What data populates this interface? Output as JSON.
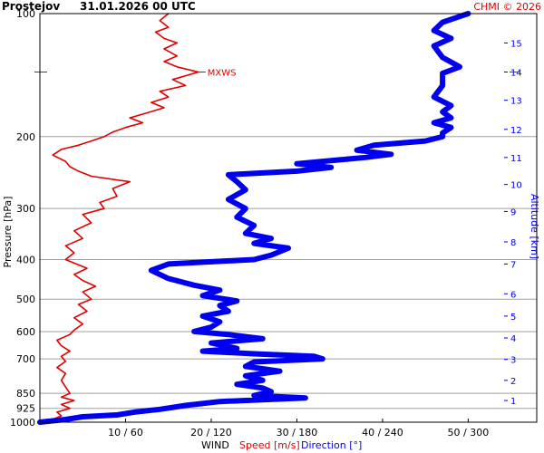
{
  "header": {
    "station": "Prostejov",
    "datetime": "31.01.2026 00 UTC",
    "credit": "CHMI © 2026"
  },
  "colors": {
    "speed": "#e00000",
    "direction": "#0000ee",
    "grid": "#a0a0a0",
    "frame": "#000000",
    "background": "#ffffff"
  },
  "chart_data": {
    "type": "line",
    "title": "Prostejov   31.01.2026 00 UTC",
    "y_axis": {
      "label": "Pressure [hPa]",
      "scale": "log",
      "range": [
        1000,
        100
      ],
      "ticks": [
        100,
        200,
        300,
        400,
        500,
        600,
        700,
        850,
        925,
        1000
      ]
    },
    "y2_axis": {
      "label": "Altitude [km]",
      "ticks": [
        {
          "label": "1",
          "hPa": 885
        },
        {
          "label": "2",
          "hPa": 790
        },
        {
          "label": "3",
          "hPa": 702
        },
        {
          "label": "4",
          "hPa": 622
        },
        {
          "label": "5",
          "hPa": 550
        },
        {
          "label": "6",
          "hPa": 485
        },
        {
          "label": "7",
          "hPa": 410
        },
        {
          "label": "8",
          "hPa": 362
        },
        {
          "label": "9",
          "hPa": 305
        },
        {
          "label": "10",
          "hPa": 262
        },
        {
          "label": "11",
          "hPa": 225
        },
        {
          "label": "12",
          "hPa": 192
        },
        {
          "label": "13",
          "hPa": 163
        },
        {
          "label": "14",
          "hPa": 139
        },
        {
          "label": "15",
          "hPa": 118
        }
      ]
    },
    "x_axis": {
      "speed_range": [
        0,
        58
      ],
      "direction_range": [
        0,
        348
      ],
      "ticks": [
        {
          "speed": 10,
          "label": "10 / 60"
        },
        {
          "speed": 20,
          "label": "20 / 120"
        },
        {
          "speed": 30,
          "label": "30 / 180"
        },
        {
          "speed": 40,
          "label": "40 / 240"
        },
        {
          "speed": 50,
          "label": "50 / 300"
        }
      ],
      "caption_prefix": "WIND",
      "caption_speed": "Speed [m/s]",
      "caption_direction": "Direction [°]"
    },
    "maxws": {
      "label": "MXWS",
      "speed": 18.5,
      "hPa": 139
    },
    "series": [
      {
        "name": "Speed [m/s]",
        "color": "#e00000",
        "points": [
          [
            0.6,
            1000
          ],
          [
            1.5,
            985
          ],
          [
            2.5,
            965
          ],
          [
            2.0,
            945
          ],
          [
            3.5,
            925
          ],
          [
            2.5,
            905
          ],
          [
            4.0,
            885
          ],
          [
            2.5,
            868
          ],
          [
            3.5,
            850
          ],
          [
            3.0,
            820
          ],
          [
            2.5,
            790
          ],
          [
            3.0,
            760
          ],
          [
            2.0,
            735
          ],
          [
            3.0,
            710
          ],
          [
            2.5,
            690
          ],
          [
            3.5,
            670
          ],
          [
            2.5,
            650
          ],
          [
            2.0,
            630
          ],
          [
            3.5,
            610
          ],
          [
            4.0,
            595
          ],
          [
            5.0,
            575
          ],
          [
            4.0,
            555
          ],
          [
            5.5,
            535
          ],
          [
            4.5,
            515
          ],
          [
            6.0,
            500
          ],
          [
            5.0,
            480
          ],
          [
            6.5,
            465
          ],
          [
            5.0,
            450
          ],
          [
            4.0,
            435
          ],
          [
            5.5,
            420
          ],
          [
            3.0,
            400
          ],
          [
            4.0,
            385
          ],
          [
            3.0,
            370
          ],
          [
            5.0,
            355
          ],
          [
            4.0,
            340
          ],
          [
            6.0,
            325
          ],
          [
            5.0,
            310
          ],
          [
            7.5,
            300
          ],
          [
            7.0,
            290
          ],
          [
            9.0,
            280
          ],
          [
            8.5,
            268
          ],
          [
            10.5,
            258
          ],
          [
            6.0,
            250
          ],
          [
            4.5,
            243
          ],
          [
            3.5,
            237
          ],
          [
            3.0,
            230
          ],
          [
            1.5,
            222
          ],
          [
            2.5,
            215
          ],
          [
            4.5,
            210
          ],
          [
            6.0,
            205
          ],
          [
            7.5,
            200
          ],
          [
            8.5,
            195
          ],
          [
            10.0,
            190
          ],
          [
            12.0,
            185
          ],
          [
            10.5,
            180
          ],
          [
            12.5,
            175
          ],
          [
            14.5,
            170
          ],
          [
            13.0,
            165
          ],
          [
            15.0,
            160
          ],
          [
            14.0,
            155
          ],
          [
            17.0,
            150
          ],
          [
            15.5,
            145
          ],
          [
            18.5,
            139
          ],
          [
            16.0,
            135
          ],
          [
            14.5,
            131
          ],
          [
            16.0,
            127
          ],
          [
            14.5,
            122
          ],
          [
            16.0,
            118
          ],
          [
            14.5,
            115
          ],
          [
            13.5,
            111
          ],
          [
            15.0,
            108
          ],
          [
            14.0,
            104
          ],
          [
            15.0,
            100
          ]
        ]
      },
      {
        "name": "Direction [°]",
        "color": "#0000ee",
        "points": [
          [
            0.0,
            1000
          ],
          [
            18.0,
            985
          ],
          [
            30.0,
            970
          ],
          [
            54.0,
            960
          ],
          [
            66.0,
            945
          ],
          [
            84.0,
            930
          ],
          [
            102.0,
            910
          ],
          [
            126.0,
            890
          ],
          [
            186.0,
            872
          ],
          [
            150.0,
            860
          ],
          [
            162.0,
            842
          ],
          [
            156.0,
            825
          ],
          [
            138.0,
            808
          ],
          [
            156.0,
            790
          ],
          [
            144.0,
            770
          ],
          [
            168.0,
            750
          ],
          [
            144.0,
            730
          ],
          [
            150.0,
            712
          ],
          [
            198.0,
            700
          ],
          [
            192.0,
            690
          ],
          [
            150.0,
            680
          ],
          [
            114.0,
            670
          ],
          [
            138.0,
            660
          ],
          [
            120.0,
            640
          ],
          [
            156.0,
            625
          ],
          [
            132.0,
            610
          ],
          [
            108.0,
            600
          ],
          [
            120.0,
            585
          ],
          [
            126.0,
            568
          ],
          [
            114.0,
            550
          ],
          [
            132.0,
            535
          ],
          [
            126.0,
            518
          ],
          [
            138.0,
            505
          ],
          [
            114.0,
            490
          ],
          [
            126.0,
            475
          ],
          [
            108.0,
            462
          ],
          [
            90.0,
            445
          ],
          [
            78.0,
            425
          ],
          [
            90.0,
            410
          ],
          [
            150.0,
            400
          ],
          [
            162.0,
            390
          ],
          [
            174.0,
            375
          ],
          [
            150.0,
            365
          ],
          [
            162.0,
            355
          ],
          [
            144.0,
            345
          ],
          [
            150.0,
            330
          ],
          [
            138.0,
            315
          ],
          [
            144.0,
            300
          ],
          [
            132.0,
            285
          ],
          [
            144.0,
            270
          ],
          [
            138.0,
            258
          ],
          [
            132.0,
            248
          ],
          [
            180.0,
            243
          ],
          [
            204.0,
            238
          ],
          [
            180.0,
            233
          ],
          [
            210.0,
            228
          ],
          [
            228.0,
            225
          ],
          [
            246.0,
            221
          ],
          [
            222.0,
            216
          ],
          [
            234.0,
            210
          ],
          [
            270.0,
            205
          ],
          [
            282.0,
            200
          ],
          [
            282.0,
            196
          ],
          [
            288.0,
            190
          ],
          [
            276.0,
            185
          ],
          [
            288.0,
            180
          ],
          [
            282.0,
            174
          ],
          [
            288.0,
            168
          ],
          [
            276.0,
            160
          ],
          [
            282.0,
            150
          ],
          [
            282.0,
            140
          ],
          [
            294.0,
            135
          ],
          [
            282.0,
            128
          ],
          [
            276.0,
            120
          ],
          [
            288.0,
            115
          ],
          [
            276.0,
            110
          ],
          [
            282.0,
            105
          ],
          [
            300.0,
            100
          ]
        ]
      }
    ]
  }
}
